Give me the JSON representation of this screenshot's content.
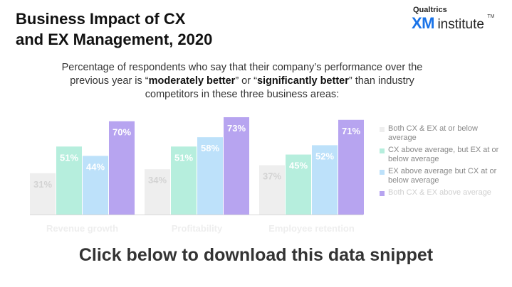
{
  "header": {
    "title_line1": "Business Impact of CX",
    "title_line2": "and EX Management, 2020"
  },
  "logo": {
    "brand": "Qualtrics",
    "xm": "XM",
    "institute": "institute",
    "tm": "TM"
  },
  "subtitle": {
    "part1": "Percentage of respondents who say that their company’s performance over the previous year is “",
    "bold1": "moderately better",
    "part2": "” or “",
    "bold2": "significantly better",
    "part3": "” than industry competitors in these three business areas:"
  },
  "chart_data": {
    "type": "bar",
    "categories": [
      "Revenue growth",
      "Profitability",
      "Employee retention"
    ],
    "series": [
      {
        "name": "Both CX & EX at or below average",
        "values": [
          31,
          34,
          37
        ],
        "color": "#eeeeee"
      },
      {
        "name": "CX above average, but EX at or below average",
        "values": [
          51,
          51,
          45
        ],
        "color": "#b6eedd"
      },
      {
        "name": "EX above average but CX at or below average",
        "values": [
          44,
          58,
          52
        ],
        "color": "#bde1fa"
      },
      {
        "name": "Both CX & EX above average",
        "values": [
          70,
          73,
          71
        ],
        "color": "#b7a4f0"
      }
    ],
    "data_label_suffix": "%",
    "ylim": [
      0,
      73
    ],
    "legend_position": "right"
  },
  "cta": {
    "label": "Click below to download this data snippet"
  }
}
